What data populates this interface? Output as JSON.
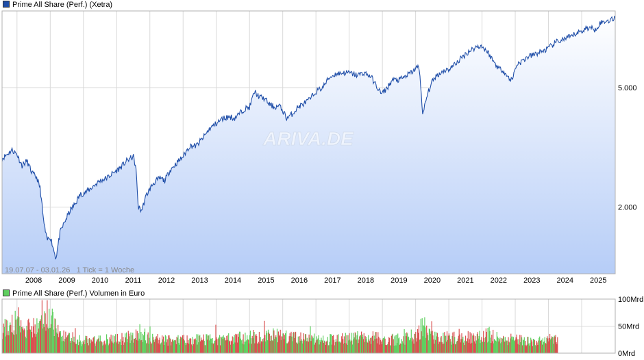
{
  "colors": {
    "price_line": "#1f4ea8",
    "area_top": "#ffffff",
    "area_bottom": "#b6cdf7",
    "grid": "#d9d9d9",
    "frame": "#b0b0b0",
    "volume_up": "#5fcf5f",
    "volume_down": "#d95050",
    "legend_price": "#1f4ea8",
    "legend_volume": "#5fcf5f"
  },
  "price_legend": "Prime All Share (Perf.) (Xetra)",
  "volume_legend": "Prime All Share (Perf.) Volumen in Euro",
  "footnote": "19.07.07 - 03.01.26   1 Tick = 1 Woche",
  "watermark": "ARIVA.DE",
  "chart_data": [
    {
      "type": "area",
      "title": "Prime All Share (Perf.) (Xetra)",
      "scale": "log",
      "ylim": [
        1200,
        9000
      ],
      "y_ticks": [
        2000,
        5000
      ],
      "y_tick_labels": [
        "2.000",
        "5.000"
      ],
      "x_tick_labels": [
        "2008",
        "2009",
        "2010",
        "2011",
        "2012",
        "2013",
        "2014",
        "2015",
        "2016",
        "2017",
        "2018",
        "2019",
        "2020",
        "2021",
        "2022",
        "2023",
        "2024",
        "2025"
      ],
      "xlim": [
        2007.55,
        2026.01
      ],
      "grid": true,
      "series": [
        {
          "name": "Prime All Share (Perf.) (Xetra)",
          "x": [
            2007.55,
            2007.7,
            2007.85,
            2008.0,
            2008.15,
            2008.3,
            2008.45,
            2008.6,
            2008.7,
            2008.8,
            2008.9,
            2009.0,
            2009.1,
            2009.17,
            2009.3,
            2009.45,
            2009.6,
            2009.75,
            2009.9,
            2010.1,
            2010.3,
            2010.5,
            2010.7,
            2010.9,
            2011.1,
            2011.3,
            2011.5,
            2011.58,
            2011.65,
            2011.75,
            2011.9,
            2012.1,
            2012.3,
            2012.45,
            2012.6,
            2012.8,
            2013.0,
            2013.2,
            2013.4,
            2013.6,
            2013.8,
            2014.0,
            2014.2,
            2014.4,
            2014.55,
            2014.7,
            2014.85,
            2015.0,
            2015.15,
            2015.3,
            2015.45,
            2015.6,
            2015.75,
            2015.9,
            2016.05,
            2016.12,
            2016.3,
            2016.45,
            2016.6,
            2016.8,
            2017.0,
            2017.2,
            2017.4,
            2017.6,
            2017.8,
            2018.0,
            2018.1,
            2018.25,
            2018.45,
            2018.65,
            2018.85,
            2018.98,
            2019.15,
            2019.3,
            2019.5,
            2019.7,
            2019.9,
            2020.1,
            2020.15,
            2020.21,
            2020.3,
            2020.45,
            2020.6,
            2020.75,
            2020.85,
            2021.0,
            2021.2,
            2021.4,
            2021.6,
            2021.8,
            2021.95,
            2022.1,
            2022.2,
            2022.35,
            2022.5,
            2022.65,
            2022.78,
            2022.9,
            2023.05,
            2023.2,
            2023.35,
            2023.5,
            2023.65,
            2023.8,
            2023.95,
            2024.1,
            2024.25,
            2024.4,
            2024.55,
            2024.7,
            2024.85,
            2025.0,
            2025.15,
            2025.27,
            2025.4,
            2025.55,
            2025.7,
            2025.85,
            2026.01
          ],
          "y": [
            2900,
            3000,
            3100,
            3000,
            2750,
            2850,
            2600,
            2500,
            2300,
            1800,
            1550,
            1600,
            1450,
            1350,
            1650,
            1800,
            1950,
            2050,
            2200,
            2250,
            2350,
            2450,
            2500,
            2600,
            2700,
            2850,
            2950,
            2700,
            2000,
            1950,
            2200,
            2400,
            2500,
            2450,
            2650,
            2800,
            2950,
            3200,
            3200,
            3400,
            3650,
            3800,
            3950,
            4000,
            3950,
            4100,
            4250,
            4300,
            4850,
            4650,
            4600,
            4400,
            4300,
            4350,
            4100,
            3950,
            4100,
            4300,
            4400,
            4550,
            4850,
            5000,
            5400,
            5550,
            5600,
            5600,
            5550,
            5500,
            5600,
            5450,
            5000,
            4750,
            5000,
            5300,
            5300,
            5450,
            5650,
            5900,
            5200,
            4000,
            4500,
            5100,
            5450,
            5600,
            5700,
            5750,
            6000,
            6300,
            6600,
            6800,
            6900,
            6700,
            6500,
            6100,
            5800,
            5700,
            5400,
            5300,
            6000,
            6100,
            6300,
            6400,
            6500,
            6600,
            6700,
            6900,
            7100,
            7200,
            7300,
            7400,
            7600,
            7700,
            7900,
            7900,
            7800,
            8200,
            8300,
            8400,
            8500
          ]
        }
      ]
    },
    {
      "type": "bar",
      "title": "Prime All Share (Perf.) Volumen in Euro",
      "ylim": [
        0,
        100
      ],
      "y_ticks": [
        0,
        50,
        100
      ],
      "y_tick_labels": [
        "0Mrd",
        "50Mrd",
        "100Mrd"
      ],
      "unit": "Mrd",
      "xlim": [
        2007.55,
        2026.01
      ],
      "x_start": 2007.55,
      "x_end": 2024.27,
      "grid": true,
      "series": [
        {
          "name": "Prime All Share (Perf.) Volumen in Euro",
          "x": [
            2007.6,
            2007.8,
            2008.0,
            2008.2,
            2008.4,
            2008.6,
            2008.8,
            2009.0,
            2009.2,
            2009.4,
            2009.6,
            2009.8,
            2010.0,
            2010.5,
            2011.0,
            2011.5,
            2011.7,
            2012.0,
            2012.5,
            2013.0,
            2013.5,
            2014.0,
            2014.5,
            2015.0,
            2015.5,
            2016.0,
            2016.5,
            2017.0,
            2017.5,
            2018.0,
            2018.5,
            2019.0,
            2019.5,
            2020.0,
            2020.2,
            2020.5,
            2021.0,
            2021.5,
            2022.0,
            2022.2,
            2022.5,
            2023.0,
            2023.5,
            2024.0,
            2024.27
          ],
          "values": [
            45,
            55,
            60,
            50,
            48,
            45,
            55,
            65,
            40,
            30,
            28,
            25,
            22,
            24,
            26,
            30,
            38,
            25,
            24,
            25,
            24,
            25,
            26,
            30,
            33,
            30,
            27,
            26,
            25,
            27,
            30,
            26,
            24,
            33,
            50,
            30,
            28,
            26,
            30,
            35,
            27,
            24,
            23,
            22,
            25
          ]
        }
      ]
    }
  ]
}
